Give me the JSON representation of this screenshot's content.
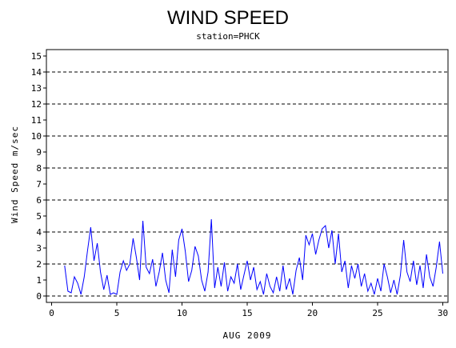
{
  "chart_data": {
    "type": "line",
    "title": "WIND SPEED",
    "subtitle": "station=PHCK",
    "x_label": "AUG 2009",
    "y_label": "Wind Speed m/sec",
    "xlim": [
      -0.4,
      30.4
    ],
    "xticks": [
      0,
      5,
      10,
      15,
      20,
      25,
      30
    ],
    "ylim": [
      -0.4,
      15.4
    ],
    "yticks": [
      0,
      1,
      2,
      3,
      4,
      5,
      6,
      7,
      8,
      9,
      10,
      11,
      12,
      13,
      14,
      15
    ],
    "ygrid": [
      0,
      2,
      4,
      6,
      8,
      10,
      12,
      14
    ],
    "x": [
      1,
      1.25,
      1.5,
      1.75,
      2,
      2.25,
      2.5,
      2.75,
      3,
      3.25,
      3.5,
      3.75,
      4,
      4.25,
      4.5,
      4.75,
      5,
      5.25,
      5.5,
      5.75,
      6,
      6.25,
      6.5,
      6.75,
      7,
      7.25,
      7.5,
      7.75,
      8,
      8.25,
      8.5,
      8.75,
      9,
      9.25,
      9.5,
      9.75,
      10,
      10.25,
      10.5,
      10.75,
      11,
      11.25,
      11.5,
      11.75,
      12,
      12.25,
      12.5,
      12.75,
      13,
      13.25,
      13.5,
      13.75,
      14,
      14.25,
      14.5,
      14.75,
      15,
      15.25,
      15.5,
      15.75,
      16,
      16.25,
      16.5,
      16.75,
      17,
      17.25,
      17.5,
      17.75,
      18,
      18.25,
      18.5,
      18.75,
      19,
      19.25,
      19.5,
      19.75,
      20,
      20.25,
      20.5,
      20.75,
      21,
      21.25,
      21.5,
      21.75,
      22,
      22.25,
      22.5,
      22.75,
      23,
      23.25,
      23.5,
      23.75,
      24,
      24.25,
      24.5,
      24.75,
      25,
      25.25,
      25.5,
      25.75,
      26,
      26.25,
      26.5,
      26.75,
      27,
      27.25,
      27.5,
      27.75,
      28,
      28.25,
      28.5,
      28.75,
      29,
      29.25,
      29.5,
      29.75,
      30
    ],
    "series": [
      {
        "name": "Wind Speed",
        "color": "#0000ff",
        "values": [
          1.9,
          0.3,
          0.2,
          1.2,
          0.8,
          0.1,
          1.2,
          2.8,
          4.3,
          2.2,
          3.3,
          1.5,
          0.4,
          1.3,
          0.1,
          0.2,
          0.1,
          1.5,
          2.2,
          1.6,
          2.0,
          3.6,
          2.4,
          1.0,
          4.7,
          1.8,
          1.4,
          2.3,
          0.6,
          1.5,
          2.7,
          1.0,
          0.2,
          2.9,
          1.2,
          3.5,
          4.2,
          2.8,
          0.9,
          1.6,
          3.1,
          2.5,
          1.0,
          0.3,
          1.5,
          4.8,
          0.5,
          1.8,
          0.6,
          2.1,
          0.3,
          1.2,
          0.8,
          2.0,
          0.4,
          1.3,
          2.2,
          1.0,
          1.8,
          0.4,
          0.9,
          0.1,
          1.4,
          0.6,
          0.2,
          1.2,
          0.3,
          1.9,
          0.4,
          1.1,
          0.1,
          1.6,
          2.4,
          1.0,
          3.8,
          3.2,
          3.9,
          2.6,
          3.5,
          4.2,
          4.4,
          3.0,
          4.1,
          2.0,
          3.9,
          1.5,
          2.2,
          0.5,
          1.9,
          1.1,
          2.0,
          0.6,
          1.4,
          0.3,
          0.8,
          0.1,
          1.1,
          0.3,
          2.0,
          1.2,
          0.2,
          1.0,
          0.1,
          1.3,
          3.5,
          1.5,
          0.9,
          2.2,
          0.7,
          1.9,
          0.5,
          2.6,
          1.2,
          0.6,
          1.8,
          3.4,
          1.4
        ]
      }
    ]
  }
}
